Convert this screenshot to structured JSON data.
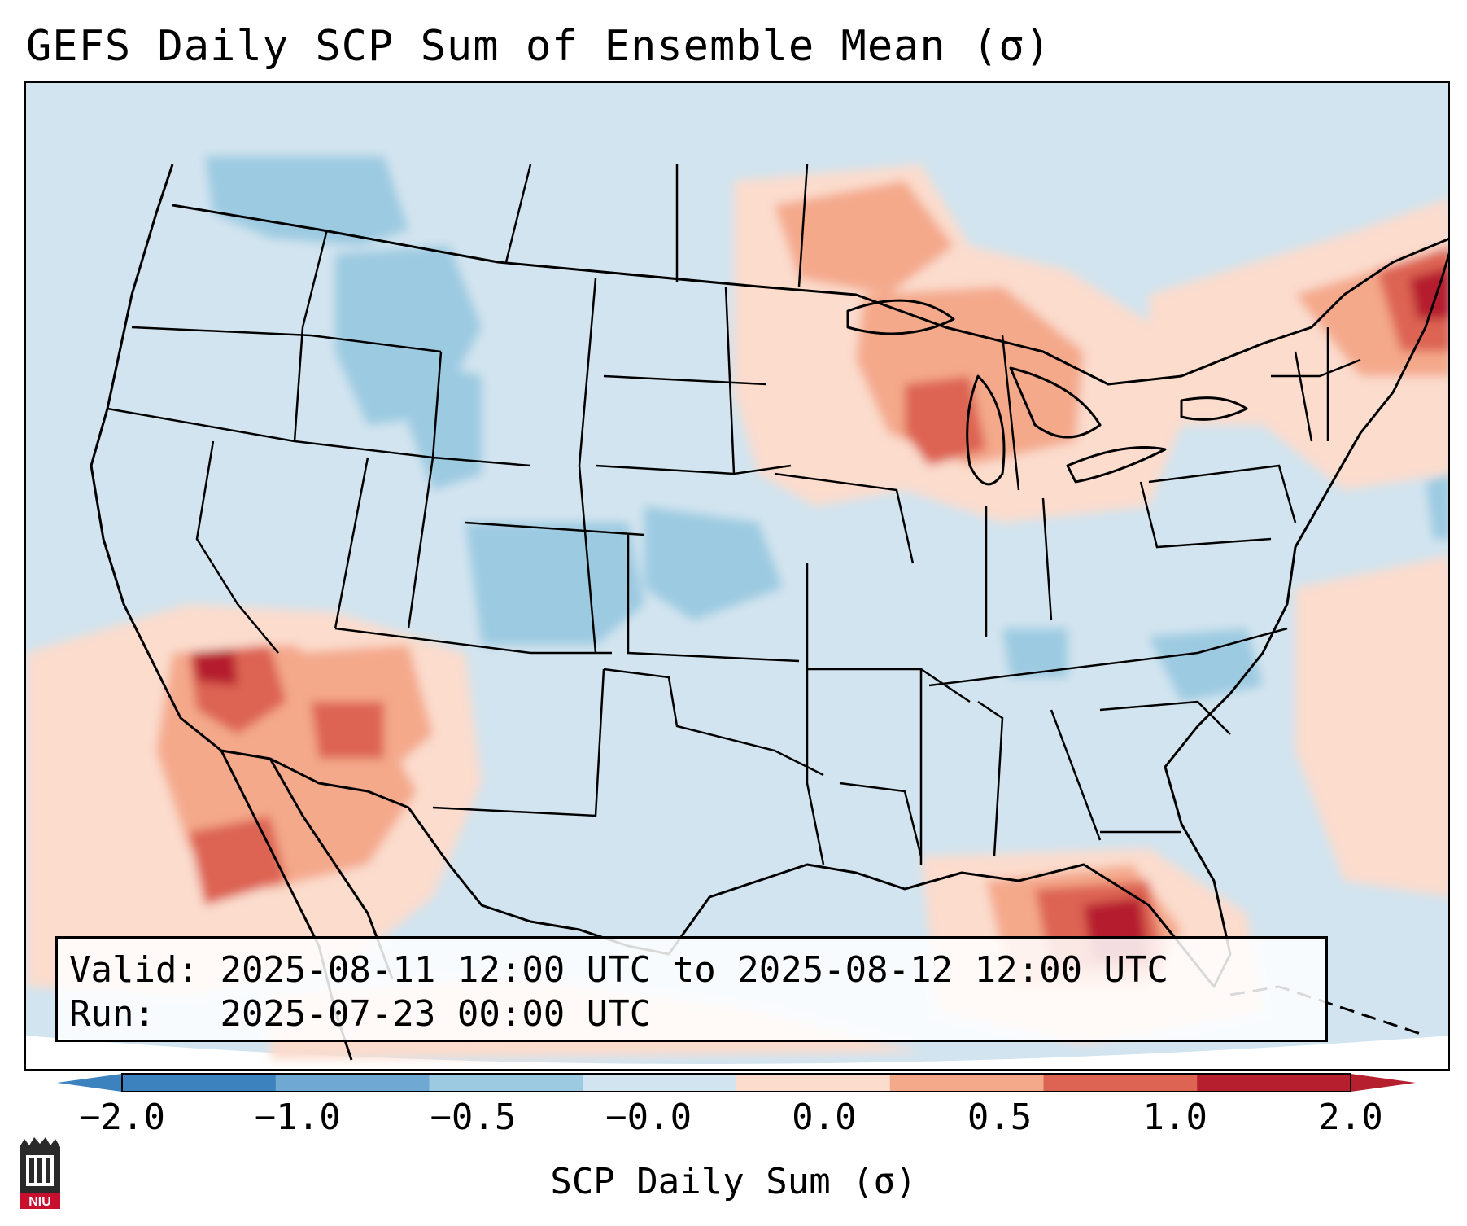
{
  "title": "GEFS Daily SCP Sum of Ensemble Mean (σ)",
  "info_box": {
    "valid_label": "Valid:",
    "valid_value": "2025-08-11 12:00 UTC to 2025-08-12 12:00 UTC",
    "run_label": "Run:",
    "run_value": "2025-07-23 00:00 UTC"
  },
  "colorbar": {
    "label": "SCP Daily Sum (σ)",
    "ticks": [
      "−2.0",
      "−1.0",
      "−0.5",
      "−0.0",
      "0.0",
      "0.5",
      "1.0",
      "2.0"
    ],
    "colors": [
      "#3b82bf",
      "#6fa9d3",
      "#9ccae1",
      "#d2e4ef",
      "#fbdccd",
      "#f4a98b",
      "#dd6453",
      "#b51f2e"
    ],
    "under_color": "#3b82bf",
    "over_color": "#b51f2e"
  },
  "map": {
    "background_color": "#d2e4ef",
    "outline_color": "#000000",
    "anomaly_regions": [
      {
        "name": "Upper Midwest / Great Lakes",
        "level": "0.5 to 1.0"
      },
      {
        "name": "Desert Southwest / Baja",
        "level": "1.0 to 2.0"
      },
      {
        "name": "Eastern Gulf of Mexico",
        "level": "1.0 to 2.0"
      },
      {
        "name": "New England",
        "level": "1.0 to 2.0"
      },
      {
        "name": "Northern Rockies",
        "level": "-1.0 to -0.5"
      },
      {
        "name": "Colorado / Kansas",
        "level": "-1.0 to -0.5"
      }
    ]
  },
  "logo": {
    "text": "NIU"
  }
}
